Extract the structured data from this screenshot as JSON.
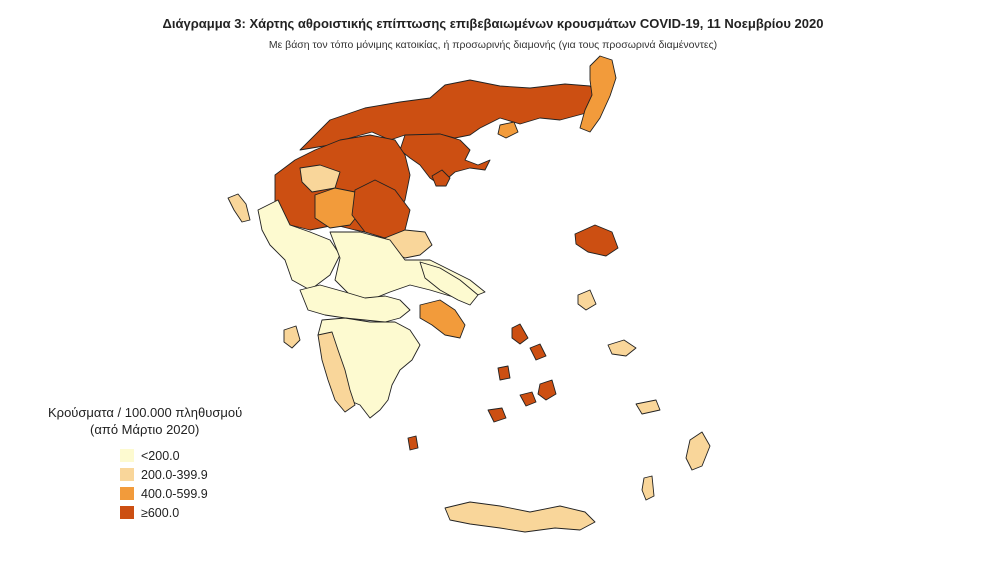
{
  "header": {
    "title": "Διάγραμμα 3: Χάρτης αθροιστικής επίπτωσης επιβεβαιωμένων κρουσμάτων COVID-19, 11 Νοεμβρίου 2020",
    "subtitle": "Με βάση τον τόπο μόνιμης κατοικίας, ή προσωρινής διαμονής (για τους προσωρινά διαμένοντες)"
  },
  "legend": {
    "title_line1": "Κρούσματα / 100.000 πληθυσμού",
    "title_line2": "(από Μάρτιο 2020)",
    "items": [
      {
        "label": "<200.0",
        "color": "#fdfad0"
      },
      {
        "label": "200.0-399.9",
        "color": "#f9d69a"
      },
      {
        "label": "400.0-599.9",
        "color": "#f29b3b"
      },
      {
        "label": "≥600.0",
        "color": "#cc4f12"
      }
    ]
  },
  "map": {
    "region_classes": {
      "northern-macedonia-thrace": 3,
      "western-macedonia": 3,
      "thessaloniki-chalkidiki": 3,
      "evros": 2,
      "thasos": 2,
      "kozani": 2,
      "grevena": 1,
      "larisa": 3,
      "magnesia": 1,
      "epirus": 0,
      "corfu": 1,
      "thessaly-south": 0,
      "central-greece": 0,
      "attica": 2,
      "euboea": 0,
      "peloponnese": 0,
      "western-peloponnese": 1,
      "crete": 1,
      "lesvos": 3,
      "cyclades": 3,
      "dodecanese": 1,
      "rhodes": 1
    }
  }
}
